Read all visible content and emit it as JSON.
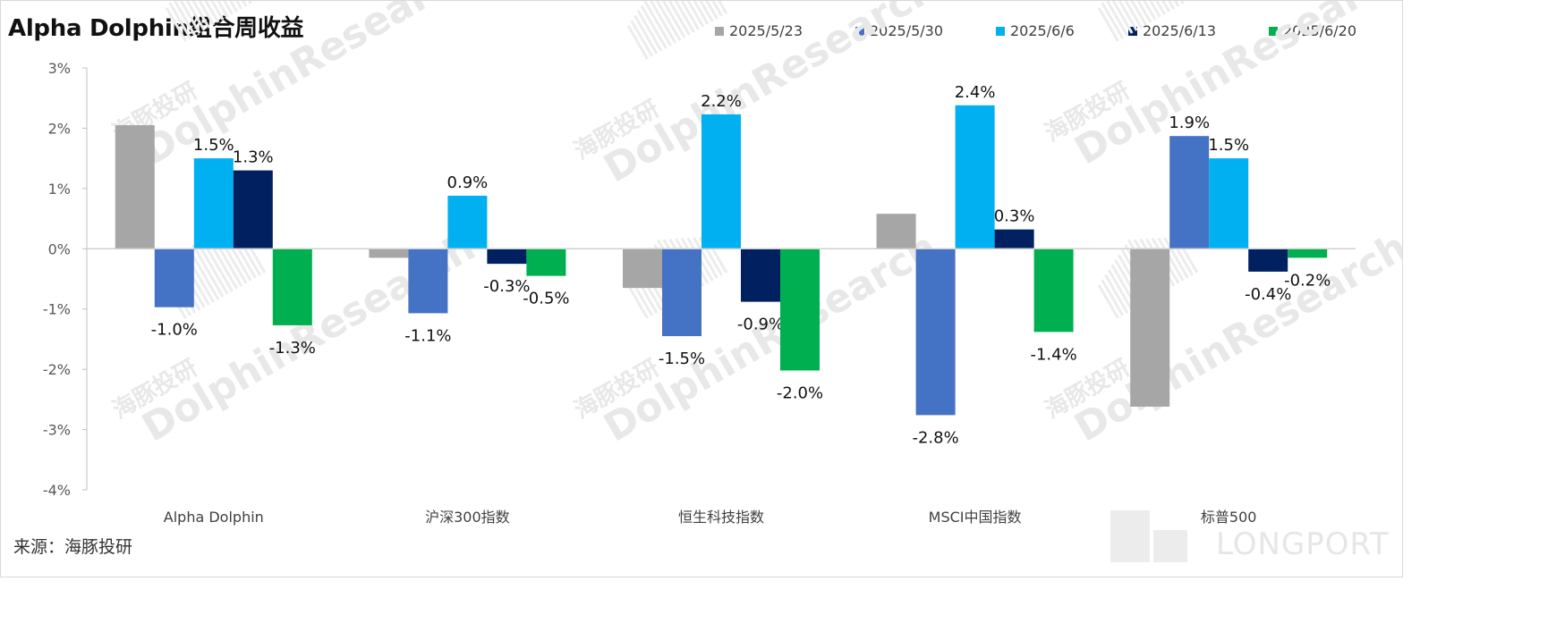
{
  "title": "Alpha Dolphin组合周收益",
  "source": "来源：海豚投研",
  "watermark": {
    "cn": "海豚投研",
    "en": "DolphinResearch",
    "brand": "LONGPORT"
  },
  "chart_data": {
    "type": "bar",
    "categories": [
      "Alpha Dolphin",
      "沪深300指数",
      "恒生科技指数",
      "MSCI中国指数",
      "标普500"
    ],
    "series": [
      {
        "name": "2025/5/23",
        "color": "#a6a6a6",
        "values": [
          2.05,
          -0.15,
          -0.65,
          0.58,
          -2.62
        ],
        "labels": [
          "",
          "",
          "",
          "",
          ""
        ]
      },
      {
        "name": "2025/5/30",
        "color": "#4472c4",
        "values": [
          -0.97,
          -1.07,
          -1.45,
          -2.76,
          1.87
        ],
        "labels": [
          "-1.0%",
          "-1.1%",
          "-1.5%",
          "-2.8%",
          "1.9%"
        ]
      },
      {
        "name": "2025/6/6",
        "color": "#00b0f0",
        "values": [
          1.5,
          0.88,
          2.23,
          2.38,
          1.5
        ],
        "labels": [
          "1.5%",
          "0.9%",
          "2.2%",
          "2.4%",
          "1.5%"
        ]
      },
      {
        "name": "2025/6/13",
        "color": "#002060",
        "values": [
          1.3,
          -0.25,
          -0.88,
          0.32,
          -0.38
        ],
        "labels": [
          "1.3%",
          "-0.3%",
          "-0.9%",
          "0.3%",
          "-0.4%"
        ]
      },
      {
        "name": "2025/6/20",
        "color": "#00b050",
        "values": [
          -1.27,
          -0.45,
          -2.02,
          -1.38,
          -0.15
        ],
        "labels": [
          "-1.3%",
          "-0.5%",
          "-2.0%",
          "-1.4%",
          "-0.2%"
        ]
      }
    ],
    "y_ticks": [
      "3%",
      "2%",
      "1%",
      "0%",
      "-1%",
      "-2%",
      "-3%",
      "-4%"
    ],
    "ylim": [
      -4,
      3
    ],
    "unit": "%",
    "legend_position": "top-right",
    "grid": false
  }
}
